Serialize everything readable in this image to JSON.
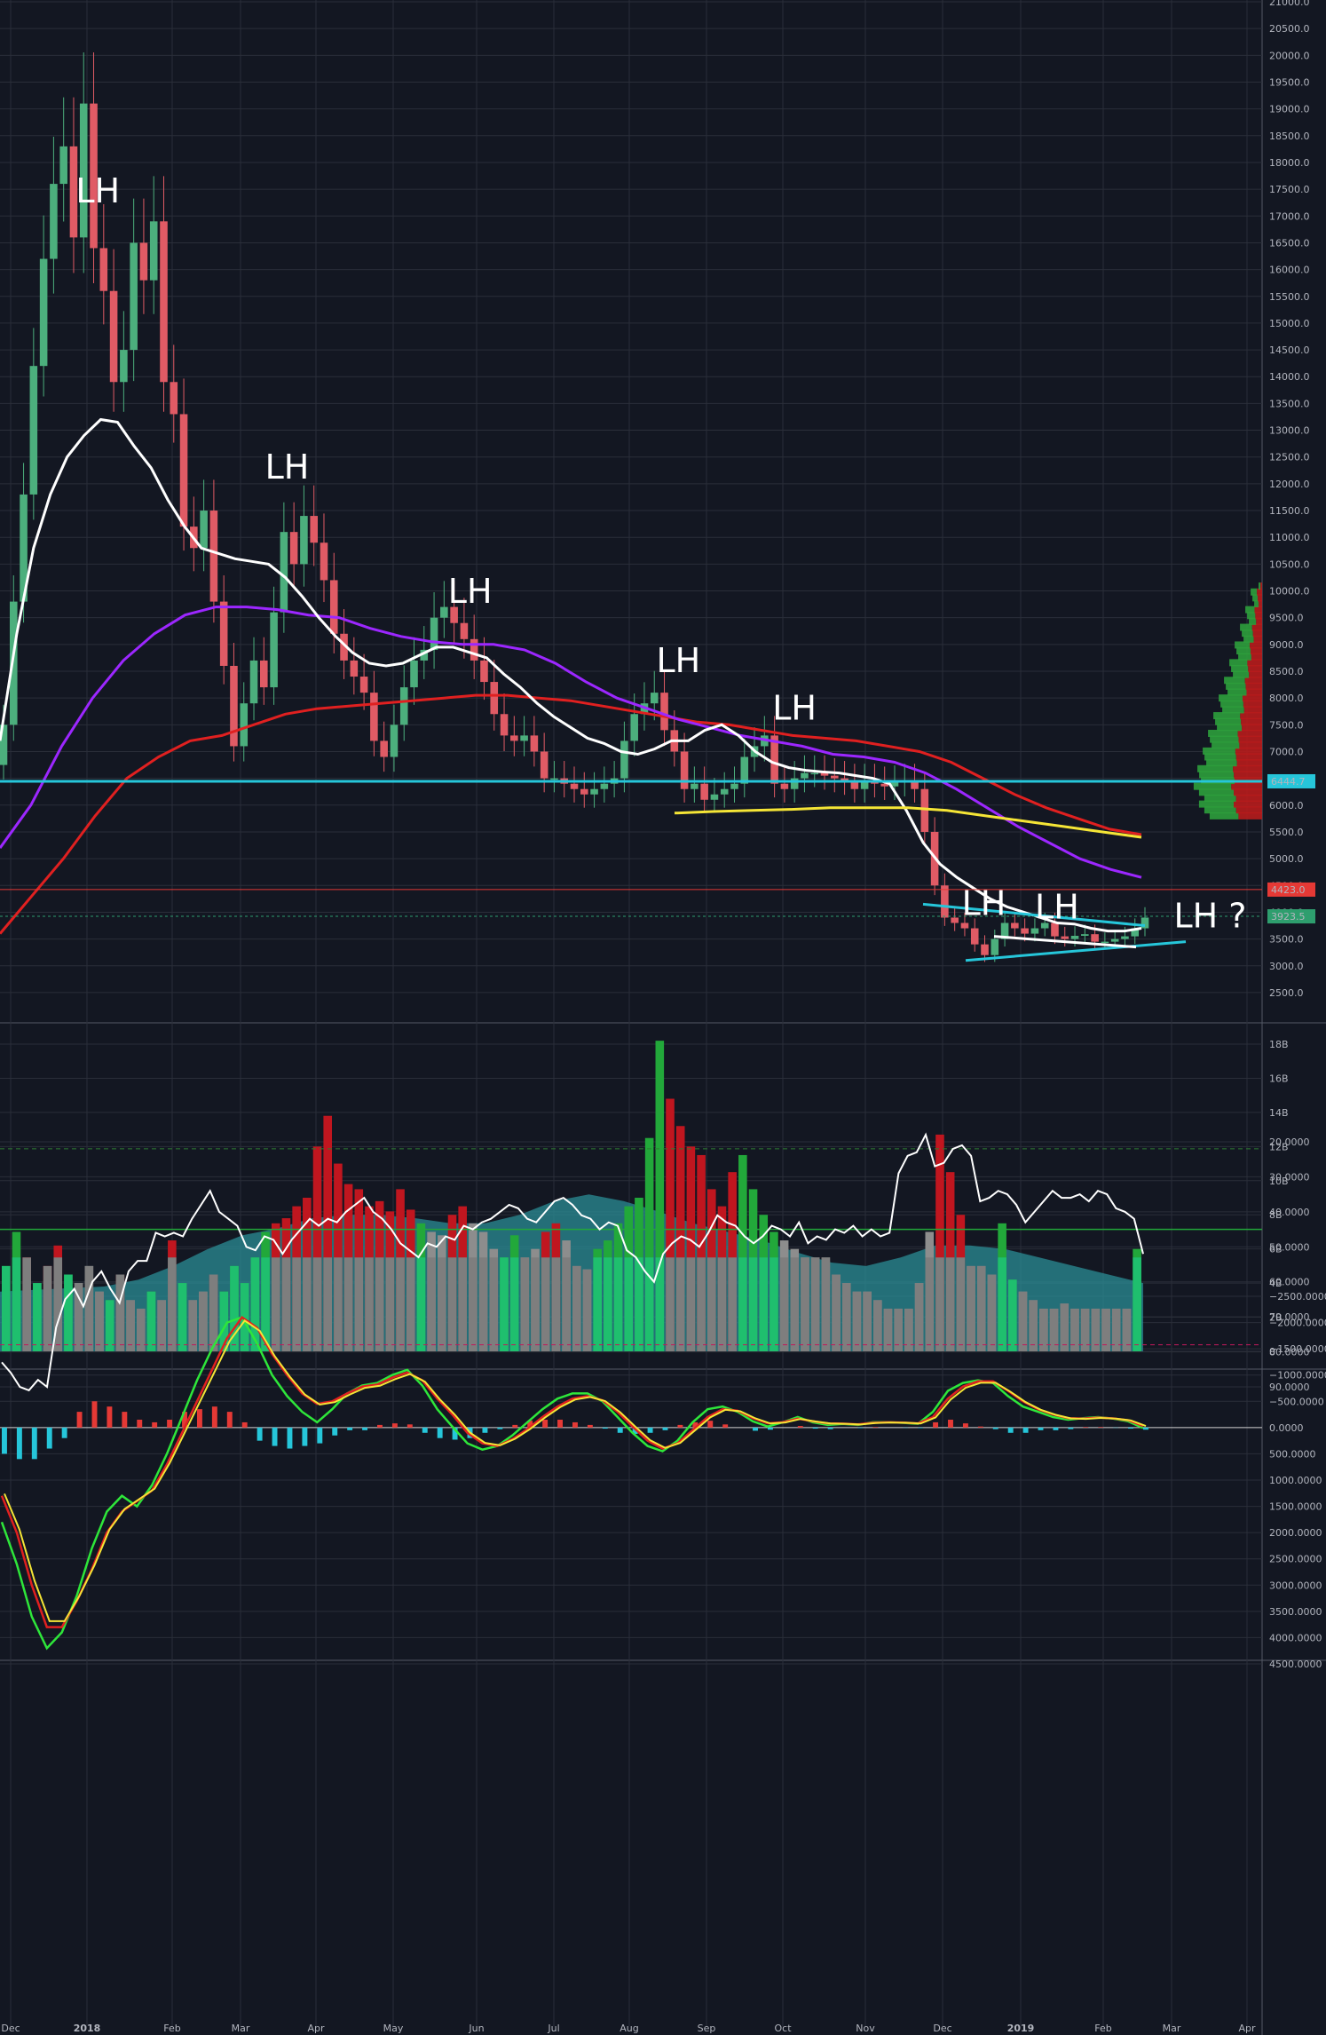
{
  "chart_data": {
    "type": "candlestick",
    "symbol": "BTCUSD",
    "x": {
      "labels": [
        "Dec",
        "2018",
        "Feb",
        "Mar",
        "Apr",
        "May",
        "Jun",
        "Jul",
        "Aug",
        "Sep",
        "Oct",
        "Nov",
        "Dec",
        "2019",
        "Feb",
        "Mar",
        "Apr"
      ]
    },
    "price": {
      "ylim": [
        2250,
        21000
      ],
      "ticks": [
        "2500.0",
        "3000.0",
        "3500.0",
        "4000.0",
        "4500.0",
        "5000.0",
        "5500.0",
        "6000.0",
        "6500.0",
        "7000.0",
        "7500.0",
        "8000.0",
        "8500.0",
        "9000.0",
        "9500.0",
        "10000.0",
        "10500.0",
        "11000.0",
        "11500.0",
        "12000.0",
        "12500.0",
        "13000.0",
        "13500.0",
        "14000.0",
        "14500.0",
        "15000.0",
        "15500.0",
        "16000.0",
        "16500.0",
        "17000.0",
        "17500.0",
        "18000.0",
        "18500.0",
        "19000.0",
        "19500.0",
        "20000.0",
        "20500.0",
        "21000.0"
      ],
      "price_labels": [
        {
          "text": "6444.7",
          "value": 6444.7,
          "color": "#26c6da"
        },
        {
          "text": "4423.0",
          "value": 4423.0,
          "color": "#e53935"
        },
        {
          "text": "3923.5",
          "value": 3923.5,
          "color": "#2e9e6e"
        }
      ],
      "annotations": [
        {
          "text": "LH",
          "x": 0.06,
          "y": 17250
        },
        {
          "text": "LH",
          "x": 0.21,
          "y": 12100
        },
        {
          "text": "LH",
          "x": 0.355,
          "y": 9780
        },
        {
          "text": "LH",
          "x": 0.52,
          "y": 8480
        },
        {
          "text": "LH",
          "x": 0.612,
          "y": 7600
        },
        {
          "text": "LH",
          "x": 0.762,
          "y": 3950
        },
        {
          "text": "LH",
          "x": 0.82,
          "y": 3880
        },
        {
          "text": "LH ?",
          "x": 0.93,
          "y": 3720
        }
      ],
      "candles_close": [
        7500,
        9800,
        11800,
        14200,
        16200,
        17600,
        18300,
        16600,
        19100,
        16400,
        15600,
        13900,
        14500,
        16500,
        15800,
        16900,
        13900,
        13300,
        11200,
        10800,
        11500,
        9800,
        8600,
        7100,
        7900,
        8700,
        8200,
        9600,
        11100,
        10500,
        11400,
        10900,
        10200,
        9200,
        8700,
        8400,
        8100,
        7200,
        6900,
        7500,
        8200,
        8700,
        8900,
        9500,
        9700,
        9400,
        9100,
        8700,
        8300,
        7700,
        7300,
        7200,
        7300,
        7000,
        6500,
        6500,
        6400,
        6300,
        6200,
        6300,
        6400,
        6500,
        7200,
        7700,
        7900,
        8100,
        7400,
        7000,
        6300,
        6400,
        6100,
        6200,
        6300,
        6400,
        6900,
        7100,
        7300,
        6400,
        6300,
        6500,
        6600,
        6600,
        6550,
        6500,
        6450,
        6300,
        6450,
        6400,
        6350,
        6420,
        6450,
        6300,
        5500,
        4500,
        3900,
        3800,
        3700,
        3400,
        3200,
        3500,
        3800,
        3700,
        3600,
        3700,
        3800,
        3550,
        3500,
        3560,
        3590,
        3450,
        3450,
        3500,
        3550,
        3700,
        3900
      ],
      "sma_white": [
        7200,
        9200,
        10800,
        11800,
        12500,
        12900,
        13200,
        13150,
        12700,
        12300,
        11700,
        11200,
        10800,
        10700,
        10600,
        10550,
        10500,
        10250,
        9900,
        9500,
        9150,
        8850,
        8650,
        8600,
        8650,
        8800,
        8950,
        8950,
        8850,
        8750,
        8450,
        8200,
        7900,
        7650,
        7450,
        7250,
        7150,
        7000,
        6950,
        7050,
        7200,
        7200,
        7400,
        7500,
        7300,
        7000,
        6800,
        6700,
        6650,
        6620,
        6600,
        6550,
        6500,
        6400,
        5900,
        5300,
        4900,
        4650,
        4450,
        4250,
        4100,
        4000,
        3900,
        3800,
        3780,
        3700,
        3650,
        3650,
        3700
      ],
      "sma_purple": [
        5200,
        6000,
        7100,
        8000,
        8700,
        9200,
        9550,
        9700,
        9700,
        9650,
        9550,
        9500,
        9300,
        9150,
        9050,
        9000,
        9000,
        8900,
        8650,
        8300,
        8000,
        7800,
        7600,
        7450,
        7300,
        7200,
        7100,
        6950,
        6900,
        6800,
        6600,
        6300,
        5950,
        5600,
        5300,
        5000,
        4800,
        4650
      ],
      "sma_red": [
        3600,
        4300,
        5000,
        5800,
        6500,
        6900,
        7200,
        7300,
        7500,
        7700,
        7800,
        7850,
        7900,
        7950,
        8000,
        8050,
        8050,
        8000,
        7950,
        7850,
        7750,
        7650,
        7550,
        7500,
        7400,
        7300,
        7250,
        7200,
        7100,
        7000,
        6800,
        6500,
        6200,
        5950,
        5750,
        5550,
        5450
      ],
      "yellow_line": [
        5850,
        5880,
        5900,
        5920,
        5950,
        5950,
        5950,
        5900,
        5800,
        5700,
        5600,
        5500,
        5400
      ],
      "horizontal_lines": [
        6444.7,
        4423.0,
        3923.5
      ]
    },
    "volume": {
      "ticks": [
        "0",
        "2B",
        "4B",
        "6B",
        "8B",
        "10B",
        "12B",
        "14B",
        "16B",
        "18B"
      ],
      "ylim": [
        0,
        19
      ],
      "values": [
        5,
        7,
        5.5,
        4,
        5,
        6.2,
        4.5,
        4,
        5,
        3.5,
        3,
        4.5,
        3,
        2.5,
        3.5,
        3,
        6.5,
        4,
        3,
        3.5,
        4.5,
        3.5,
        5,
        4,
        5.5,
        7,
        7.5,
        7.8,
        8.5,
        9,
        12,
        13.8,
        11,
        9.8,
        9.5,
        8.5,
        8.8,
        8.2,
        9.5,
        8.3,
        7.5,
        7,
        6.8,
        8,
        8.5,
        7.5,
        7,
        6,
        5.5,
        6.8,
        5.5,
        6,
        7,
        7.5,
        6.5,
        5,
        4.8,
        6,
        6.5,
        7.5,
        8.5,
        9,
        12.5,
        18.2,
        14.8,
        13.2,
        12,
        11.5,
        9.5,
        8.5,
        10.5,
        11.5,
        9.5,
        8,
        7,
        6.5,
        6,
        5.5,
        5.5,
        5.5,
        4.5,
        4,
        3.5,
        3.5,
        3,
        2.5,
        2.5,
        2.5,
        4,
        7,
        12.7,
        10.5,
        8,
        5,
        5,
        4.5,
        7.5,
        4.2,
        3.5,
        3,
        2.5,
        2.5,
        2.8,
        2.5,
        2.5,
        2.5,
        2.5,
        2.5,
        2.5,
        6
      ],
      "volume_ma": [
        3.5,
        3.6,
        3.7,
        3.8,
        4.2,
        5,
        6,
        6.8,
        7.2,
        7.8,
        8,
        8,
        7.8,
        7.5,
        7.5,
        8,
        8.8,
        9.2,
        8.8,
        8.2,
        7.5,
        7,
        6.5,
        5.8,
        5.2,
        5,
        5.5,
        6.2,
        6.2,
        6,
        5.5,
        5,
        4.5,
        4
      ],
      "volume_colors": [
        "up",
        "up",
        "down",
        "up",
        "down",
        "down",
        "up",
        "flat",
        "flat",
        "flat",
        "up",
        "down",
        "flat",
        "flat",
        "up",
        "flat",
        "down",
        "up",
        "flat",
        "flat",
        "down",
        "up",
        "up",
        "up",
        "up",
        "up",
        "down",
        "down",
        "down",
        "down",
        "down",
        "down",
        "down",
        "down",
        "down",
        "down",
        "down",
        "down",
        "down",
        "down",
        "up",
        "flat",
        "flat",
        "down",
        "down",
        "flat",
        "flat",
        "flat",
        "up",
        "up",
        "flat",
        "flat",
        "down",
        "down",
        "flat",
        "flat",
        "flat",
        "up",
        "up",
        "up",
        "up",
        "up",
        "up",
        "up",
        "down",
        "down",
        "down",
        "down",
        "down",
        "down",
        "down",
        "up",
        "up",
        "up",
        "up",
        "flat",
        "flat",
        "flat",
        "flat",
        "flat",
        "flat",
        "flat",
        "flat",
        "flat",
        "flat",
        "flat",
        "flat",
        "flat",
        "flat",
        "flat",
        "down",
        "down",
        "down",
        "flat",
        "flat",
        "flat",
        "up",
        "up",
        "flat",
        "flat",
        "flat",
        "flat",
        "flat",
        "flat",
        "flat",
        "flat",
        "flat",
        "flat",
        "flat",
        "up"
      ]
    },
    "rsi": {
      "ticks": [
        "20.0000",
        "30.0000",
        "40.0000",
        "50.0000",
        "60.0000",
        "70.0000",
        "80.0000",
        "90.0000"
      ],
      "ylim": [
        15,
        95
      ],
      "upper_band": 78,
      "lower_band": 22,
      "mid_line": 45,
      "values": [
        83,
        86,
        90,
        91,
        88,
        90,
        73,
        65,
        62,
        67,
        60,
        57,
        62,
        66,
        57,
        54,
        54,
        46,
        47,
        46,
        47,
        42,
        38,
        34,
        40,
        42,
        44,
        50,
        51,
        47,
        48,
        52,
        48,
        45,
        42,
        44,
        42,
        43,
        40,
        38,
        36,
        40,
        42,
        45,
        49,
        51,
        53,
        49,
        50,
        47,
        48,
        44,
        45,
        43,
        42,
        40,
        38,
        39,
        42,
        43,
        40,
        37,
        36,
        38,
        41,
        42,
        45,
        43,
        44,
        51,
        53,
        57,
        60,
        52,
        49,
        47,
        48,
        50,
        46,
        41,
        43,
        44,
        47,
        49,
        47,
        44,
        45,
        47,
        43,
        49,
        47,
        48,
        45,
        46,
        44,
        47,
        45,
        47,
        46,
        29,
        24,
        23,
        18,
        27,
        26,
        22,
        21,
        24,
        37,
        36,
        34,
        35,
        38,
        43,
        40,
        37,
        34,
        36,
        36,
        35,
        37,
        34,
        35,
        39,
        40,
        42,
        52
      ]
    },
    "macd": {
      "ticks": [
        "−2500.0000",
        "−2000.0000",
        "−1500.0000",
        "−1000.0000",
        "−500.0000",
        "0.0000",
        "500.0000",
        "1000.0000",
        "1500.0000",
        "2000.0000",
        "2500.0000",
        "3000.0000",
        "3500.0000",
        "4000.0000",
        "4500.0000"
      ],
      "ylim": [
        -2500,
        4500
      ],
      "macd_line": [
        1800,
        2600,
        3600,
        4200,
        3900,
        3200,
        2300,
        1600,
        1300,
        1500,
        1100,
        500,
        -200,
        -900,
        -1500,
        -2000,
        -2100,
        -1600,
        -1000,
        -600,
        -300,
        -100,
        -350,
        -650,
        -800,
        -850,
        -1000,
        -1100,
        -800,
        -350,
        -20,
        300,
        420,
        350,
        150,
        -100,
        -350,
        -550,
        -650,
        -650,
        -500,
        -200,
        100,
        350,
        450,
        250,
        -100,
        -350,
        -400,
        -300,
        -120,
        -20,
        -100,
        -200,
        -100,
        -50,
        -70,
        -50,
        -100,
        -100,
        -90,
        -70,
        -300,
        -700,
        -850,
        -900,
        -850,
        -600,
        -400,
        -300,
        -200,
        -150,
        -180,
        -200,
        -170,
        -120,
        10
      ]
    },
    "macd_signal": [
      1300,
      2000,
      3000,
      3800,
      3800,
      3300,
      2700,
      2000,
      1600,
      1400,
      1200,
      700,
      100,
      -500,
      -1100,
      -1700,
      -2100,
      -1900,
      -1400,
      -1000,
      -650,
      -450,
      -500,
      -650,
      -780,
      -820,
      -950,
      -1050,
      -900,
      -550,
      -250,
      100,
      300,
      350,
      220,
      30,
      -200,
      -400,
      -550,
      -600,
      -520,
      -300,
      -20,
      250,
      400,
      300,
      50,
      -200,
      -350,
      -320,
      -180,
      -80,
      -100,
      -170,
      -120,
      -80,
      -75,
      -60,
      -90,
      -100,
      -95,
      -80,
      -200,
      -550,
      -780,
      -880,
      -880,
      -700,
      -500,
      -350,
      -250,
      -180,
      -170,
      -190,
      -175,
      -140,
      -30
    ],
    "macd_hist": [
      500,
      600,
      600,
      400,
      200,
      -300,
      -500,
      -400,
      -300,
      -150,
      -100,
      -150,
      -300,
      -350,
      -400,
      -300,
      -100,
      250,
      350,
      400,
      350,
      300,
      150,
      50,
      50,
      -50,
      -80,
      -60,
      100,
      200,
      230,
      200,
      100,
      30,
      -50,
      -130,
      -150,
      -150,
      -100,
      -50,
      20,
      100,
      120,
      100,
      50,
      -50,
      -100,
      -130,
      -60,
      0,
      60,
      40,
      0,
      -30,
      20,
      30,
      0,
      10,
      -10,
      0,
      5,
      10,
      -100,
      -150,
      -80,
      -20,
      30,
      100,
      100,
      50,
      50,
      30,
      -10,
      -10,
      5,
      20,
      40
    ]
  }
}
